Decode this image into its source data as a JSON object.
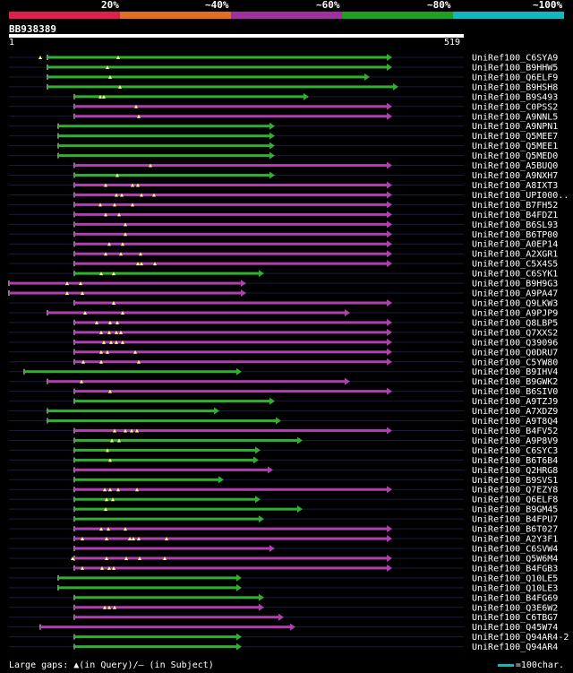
{
  "legend": {
    "labels": [
      "20%",
      "~40%",
      "~60%",
      "~80%",
      "~100%"
    ],
    "colors": [
      "#e0204a",
      "#e07020",
      "#a030a0",
      "#20a020",
      "#10b8c0"
    ]
  },
  "query": {
    "name": "BB938389",
    "start": "1",
    "end": "519",
    "length": 519
  },
  "footer": {
    "gaps_text": "Large gaps: ▲(in Query)/— (in Subject)",
    "scale_text": "=100char."
  },
  "colors": {
    "green": "#30b030",
    "magenta": "#b040b0",
    "gap": "#ffff80"
  },
  "hits": [
    {
      "name": "UniRef100_C6SYA9",
      "s": 53,
      "e": 433,
      "c": "green",
      "g": [
        45,
        132
      ]
    },
    {
      "name": "UniRef100_B9HHW5",
      "s": 53,
      "e": 433,
      "c": "green",
      "g": [
        120
      ]
    },
    {
      "name": "UniRef100_Q6ELF9",
      "s": 53,
      "e": 408,
      "c": "green",
      "g": [
        123
      ]
    },
    {
      "name": "UniRef100_B9HSH8",
      "s": 53,
      "e": 440,
      "c": "green",
      "g": [
        134
      ]
    },
    {
      "name": "UniRef100_B9S493",
      "s": 83,
      "e": 340,
      "c": "green",
      "g": [
        112,
        116
      ]
    },
    {
      "name": "UniRef100_C0PSS2",
      "s": 83,
      "e": 433,
      "c": "magenta",
      "g": [
        152
      ]
    },
    {
      "name": "UniRef100_A9NNL5",
      "s": 83,
      "e": 433,
      "c": "magenta",
      "g": [
        155
      ]
    },
    {
      "name": "UniRef100_A9NPN1",
      "s": 65,
      "e": 302,
      "c": "green",
      "g": []
    },
    {
      "name": "UniRef100_Q5MEE7",
      "s": 65,
      "e": 302,
      "c": "green",
      "g": []
    },
    {
      "name": "UniRef100_Q5MEE1",
      "s": 65,
      "e": 302,
      "c": "green",
      "g": []
    },
    {
      "name": "UniRef100_Q5MED0",
      "s": 65,
      "e": 302,
      "c": "green",
      "g": []
    },
    {
      "name": "UniRef100_A5BUQ0",
      "s": 83,
      "e": 433,
      "c": "magenta",
      "g": [
        168
      ]
    },
    {
      "name": "UniRef100_A9NXH7",
      "s": 83,
      "e": 302,
      "c": "green",
      "g": [
        131
      ]
    },
    {
      "name": "UniRef100_A8IXT3",
      "s": 83,
      "e": 433,
      "c": "magenta",
      "g": [
        118,
        148,
        154
      ]
    },
    {
      "name": "UniRef100_UPI000..",
      "s": 83,
      "e": 433,
      "c": "magenta",
      "g": [
        130,
        136,
        158,
        172
      ]
    },
    {
      "name": "UniRef100_B7FH52",
      "s": 83,
      "e": 433,
      "c": "magenta",
      "g": [
        112,
        128,
        148
      ]
    },
    {
      "name": "UniRef100_B4FDZ1",
      "s": 83,
      "e": 433,
      "c": "magenta",
      "g": [
        118,
        133
      ]
    },
    {
      "name": "UniRef100_B6SL93",
      "s": 83,
      "e": 433,
      "c": "magenta",
      "g": [
        140
      ]
    },
    {
      "name": "UniRef100_B6TP00",
      "s": 83,
      "e": 433,
      "c": "magenta",
      "g": [
        140
      ]
    },
    {
      "name": "UniRef100_A0EP14",
      "s": 83,
      "e": 433,
      "c": "magenta",
      "g": [
        122,
        137
      ]
    },
    {
      "name": "UniRef100_A2XGR1",
      "s": 83,
      "e": 433,
      "c": "magenta",
      "g": [
        118,
        135,
        157
      ]
    },
    {
      "name": "UniRef100_C5X4S5",
      "s": 83,
      "e": 433,
      "c": "magenta",
      "g": [
        154,
        158,
        173
      ]
    },
    {
      "name": "UniRef100_C6SYK1",
      "s": 83,
      "e": 290,
      "c": "green",
      "g": [
        113,
        127
      ]
    },
    {
      "name": "UniRef100_B9H9G3",
      "s": 10,
      "e": 270,
      "c": "magenta",
      "g": [
        75,
        90
      ]
    },
    {
      "name": "UniRef100_A9PA47",
      "s": 10,
      "e": 270,
      "c": "magenta",
      "g": [
        75,
        92
      ]
    },
    {
      "name": "UniRef100_Q9LKW3",
      "s": 83,
      "e": 433,
      "c": "magenta",
      "g": [
        127
      ]
    },
    {
      "name": "UniRef100_A9PJP9",
      "s": 53,
      "e": 386,
      "c": "magenta",
      "g": [
        95,
        137
      ]
    },
    {
      "name": "UniRef100_Q8LBP5",
      "s": 83,
      "e": 433,
      "c": "magenta",
      "g": [
        108,
        123,
        131
      ]
    },
    {
      "name": "UniRef100_Q7XXS2",
      "s": 83,
      "e": 433,
      "c": "magenta",
      "g": [
        113,
        122,
        130,
        135
      ]
    },
    {
      "name": "UniRef100_Q39096",
      "s": 83,
      "e": 433,
      "c": "magenta",
      "g": [
        116,
        124,
        130,
        137
      ]
    },
    {
      "name": "UniRef100_Q0DRU7",
      "s": 83,
      "e": 433,
      "c": "magenta",
      "g": [
        113,
        120,
        151
      ]
    },
    {
      "name": "UniRef100_C5YW80",
      "s": 83,
      "e": 433,
      "c": "magenta",
      "g": [
        93,
        113,
        155
      ]
    },
    {
      "name": "UniRef100_B9IHV4",
      "s": 27,
      "e": 265,
      "c": "green",
      "g": []
    },
    {
      "name": "UniRef100_B9GWK2",
      "s": 53,
      "e": 386,
      "c": "magenta",
      "g": [
        91
      ]
    },
    {
      "name": "UniRef100_B6SIV0",
      "s": 83,
      "e": 433,
      "c": "magenta",
      "g": [
        123
      ]
    },
    {
      "name": "UniRef100_A9TZJ9",
      "s": 83,
      "e": 302,
      "c": "green",
      "g": []
    },
    {
      "name": "UniRef100_A7XDZ9",
      "s": 53,
      "e": 240,
      "c": "green",
      "g": []
    },
    {
      "name": "UniRef100_A9T8Q4",
      "s": 53,
      "e": 309,
      "c": "green",
      "g": []
    },
    {
      "name": "UniRef100_B4FV52",
      "s": 83,
      "e": 433,
      "c": "magenta",
      "g": [
        128,
        140,
        147,
        153
      ]
    },
    {
      "name": "UniRef100_A9P8V9",
      "s": 83,
      "e": 333,
      "c": "green",
      "g": [
        125,
        133
      ]
    },
    {
      "name": "UniRef100_C6SYC3",
      "s": 83,
      "e": 286,
      "c": "green",
      "g": [
        120
      ]
    },
    {
      "name": "UniRef100_B6T6B4",
      "s": 83,
      "e": 284,
      "c": "green",
      "g": [
        123
      ]
    },
    {
      "name": "UniRef100_Q2HRG8",
      "s": 83,
      "e": 300,
      "c": "magenta",
      "g": []
    },
    {
      "name": "UniRef100_B9SVS1",
      "s": 83,
      "e": 245,
      "c": "green",
      "g": []
    },
    {
      "name": "UniRef100_Q7EZY8",
      "s": 83,
      "e": 433,
      "c": "magenta",
      "g": [
        117,
        123,
        132,
        153
      ]
    },
    {
      "name": "UniRef100_Q6ELF8",
      "s": 83,
      "e": 286,
      "c": "green",
      "g": [
        119,
        126
      ]
    },
    {
      "name": "UniRef100_B9GM45",
      "s": 83,
      "e": 333,
      "c": "green",
      "g": [
        118
      ]
    },
    {
      "name": "UniRef100_B4FPU7",
      "s": 83,
      "e": 290,
      "c": "green",
      "g": []
    },
    {
      "name": "UniRef100_B6T027",
      "s": 83,
      "e": 433,
      "c": "magenta",
      "g": [
        113,
        121,
        140
      ]
    },
    {
      "name": "UniRef100_A2Y3F1",
      "s": 83,
      "e": 433,
      "c": "magenta",
      "g": [
        92,
        119,
        145,
        149,
        155,
        186
      ]
    },
    {
      "name": "UniRef100_C6SVW4",
      "s": 83,
      "e": 302,
      "c": "magenta",
      "g": []
    },
    {
      "name": "UniRef100_Q5W6M4",
      "s": 83,
      "e": 433,
      "c": "magenta",
      "g": [
        81,
        119,
        141,
        156,
        184
      ]
    },
    {
      "name": "UniRef100_B4FGB3",
      "s": 83,
      "e": 433,
      "c": "magenta",
      "g": [
        92,
        114,
        122,
        127
      ]
    },
    {
      "name": "UniRef100_Q10LE5",
      "s": 65,
      "e": 265,
      "c": "green",
      "g": []
    },
    {
      "name": "UniRef100_Q10LE3",
      "s": 65,
      "e": 265,
      "c": "green",
      "g": []
    },
    {
      "name": "UniRef100_B4FG69",
      "s": 83,
      "e": 290,
      "c": "green",
      "g": []
    },
    {
      "name": "UniRef100_Q3E6W2",
      "s": 83,
      "e": 290,
      "c": "magenta",
      "g": [
        117,
        122,
        128
      ]
    },
    {
      "name": "UniRef100_C6TBG7",
      "s": 83,
      "e": 312,
      "c": "magenta",
      "g": []
    },
    {
      "name": "UniRef100_Q45W74",
      "s": 45,
      "e": 325,
      "c": "magenta",
      "g": []
    },
    {
      "name": "UniRef100_Q94AR4-2",
      "s": 83,
      "e": 265,
      "c": "green",
      "g": []
    },
    {
      "name": "UniRef100_Q94AR4",
      "s": 83,
      "e": 265,
      "c": "green",
      "g": []
    }
  ]
}
